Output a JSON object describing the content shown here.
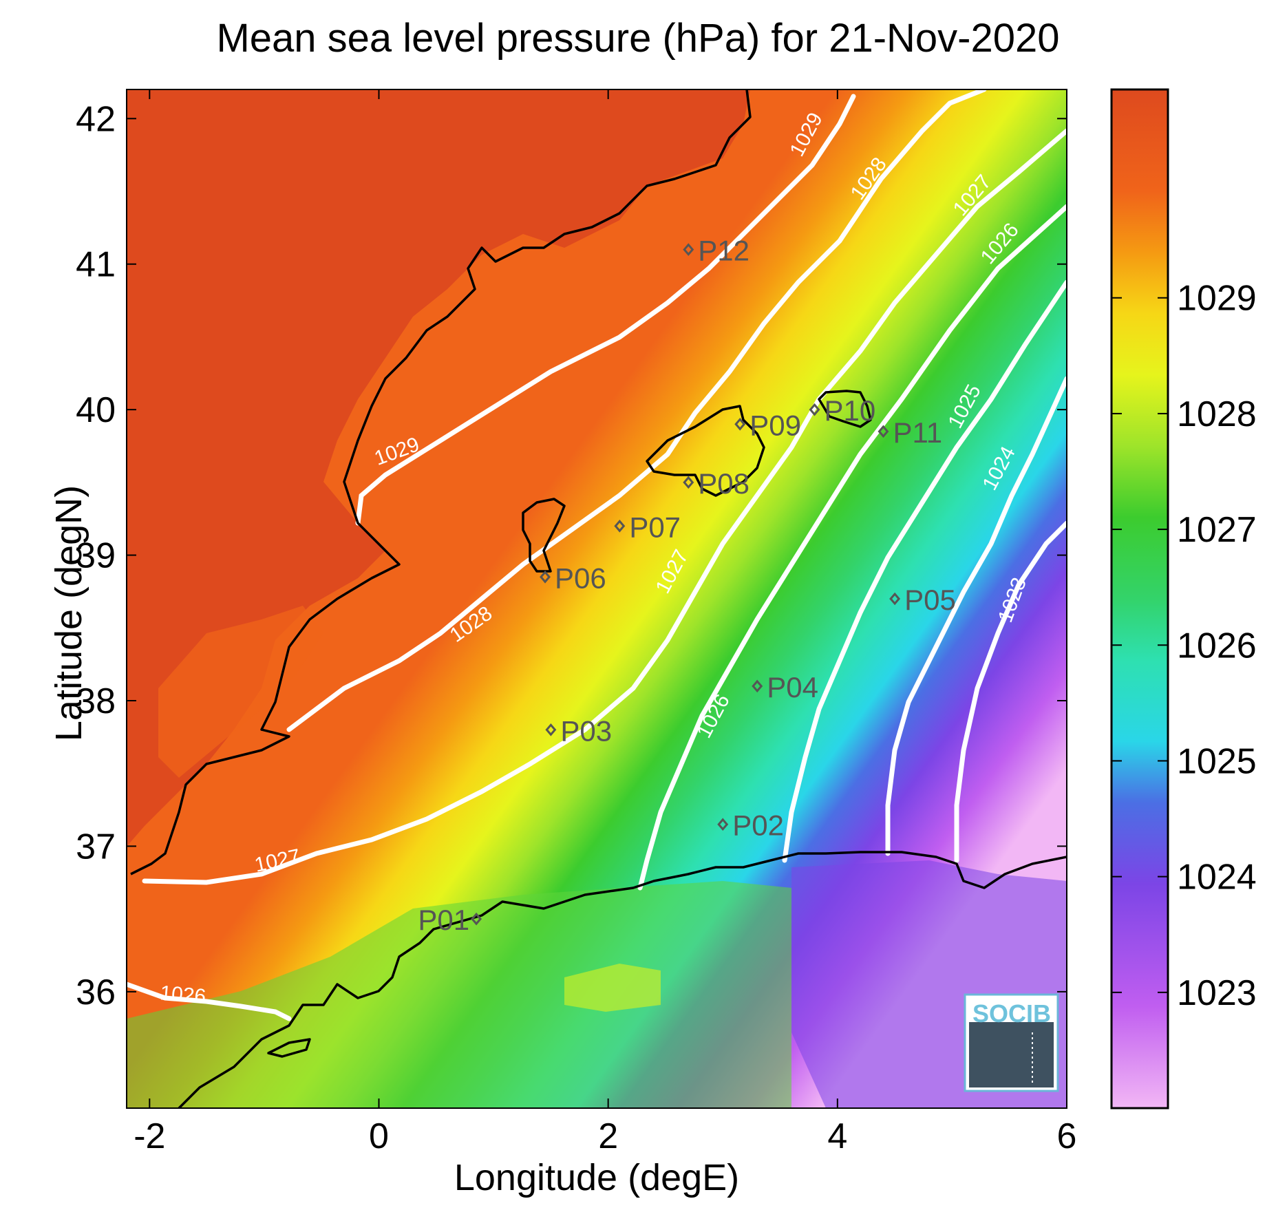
{
  "title": "Mean sea level pressure (hPa) for 21-Nov-2020",
  "xlabel": "Longitude (degE)",
  "ylabel": "Latitude (degN)",
  "xticks": [
    "-2",
    "0",
    "2",
    "4",
    "6"
  ],
  "yticks": [
    "36",
    "37",
    "38",
    "39",
    "40",
    "41",
    "42"
  ],
  "colorbar_ticks": [
    "1023",
    "1024",
    "1025",
    "1026",
    "1027",
    "1028",
    "1029"
  ],
  "contour_labels": [
    "1029",
    "1028",
    "1027",
    "1026",
    "1025",
    "1024",
    "1023",
    "1029",
    "1028",
    "1027",
    "1027",
    "1026",
    "1026"
  ],
  "points": [
    {
      "id": "P01",
      "lon": 0.85,
      "lat": 36.5
    },
    {
      "id": "P02",
      "lon": 3.0,
      "lat": 37.15
    },
    {
      "id": "P03",
      "lon": 1.5,
      "lat": 37.8
    },
    {
      "id": "P04",
      "lon": 3.3,
      "lat": 38.1
    },
    {
      "id": "P05",
      "lon": 4.5,
      "lat": 38.7
    },
    {
      "id": "P06",
      "lon": 1.45,
      "lat": 38.85
    },
    {
      "id": "P07",
      "lon": 2.1,
      "lat": 39.2
    },
    {
      "id": "P08",
      "lon": 2.7,
      "lat": 39.5
    },
    {
      "id": "P09",
      "lon": 3.15,
      "lat": 39.9
    },
    {
      "id": "P10",
      "lon": 3.8,
      "lat": 40.0
    },
    {
      "id": "P11",
      "lon": 4.4,
      "lat": 39.85
    },
    {
      "id": "P12",
      "lon": 2.7,
      "lat": 41.1
    }
  ],
  "logo_text": "SOCIB",
  "colors": {
    "colormap": [
      "#f2b7f5",
      "#c05ef0",
      "#7c45e6",
      "#4b6fe4",
      "#2ad6e8",
      "#2ee0b0",
      "#33d36a",
      "#3ccc2e",
      "#9ee42a",
      "#e6f41c",
      "#f6d716",
      "#f59a12",
      "#f0641a",
      "#de4a1e"
    ],
    "coastline": "#000000",
    "contour": "#ffffff",
    "marker": "#555555"
  },
  "chart_data": {
    "type": "heatmap",
    "variable": "Mean sea level pressure",
    "units": "hPa",
    "date": "21-Nov-2020",
    "xlim": [
      -2.2,
      6
    ],
    "ylim": [
      35.2,
      42.2
    ],
    "clim": [
      1022,
      1030.8
    ],
    "contour_levels": [
      1023,
      1024,
      1025,
      1026,
      1027,
      1028,
      1029
    ]
  }
}
